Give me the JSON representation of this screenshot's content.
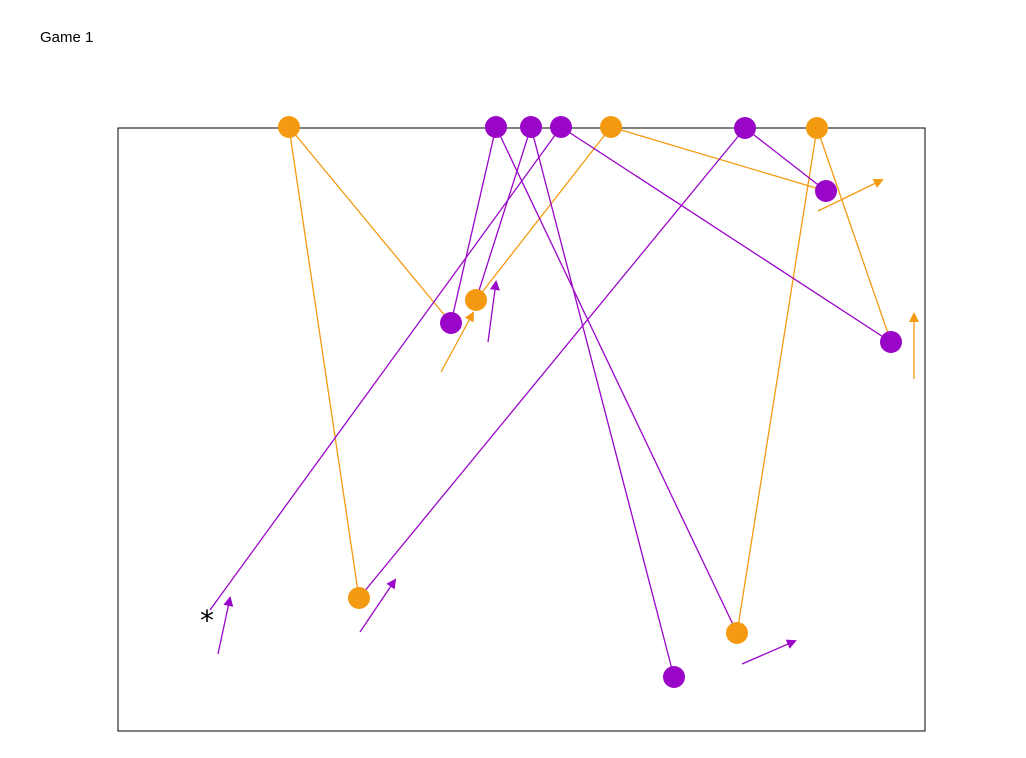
{
  "title": "Game 1",
  "colors": {
    "orange": "#f39a11",
    "purple": "#9a06c8",
    "border": "#000000",
    "star": "#000000"
  },
  "star_label": "*",
  "players": [
    {
      "id": "o1",
      "team": "orange"
    },
    {
      "id": "o2",
      "team": "orange"
    },
    {
      "id": "o3",
      "team": "orange"
    },
    {
      "id": "o4",
      "team": "orange"
    },
    {
      "id": "p1",
      "team": "purple"
    },
    {
      "id": "p2",
      "team": "purple"
    },
    {
      "id": "p3",
      "team": "purple"
    },
    {
      "id": "p4",
      "team": "purple"
    }
  ]
}
